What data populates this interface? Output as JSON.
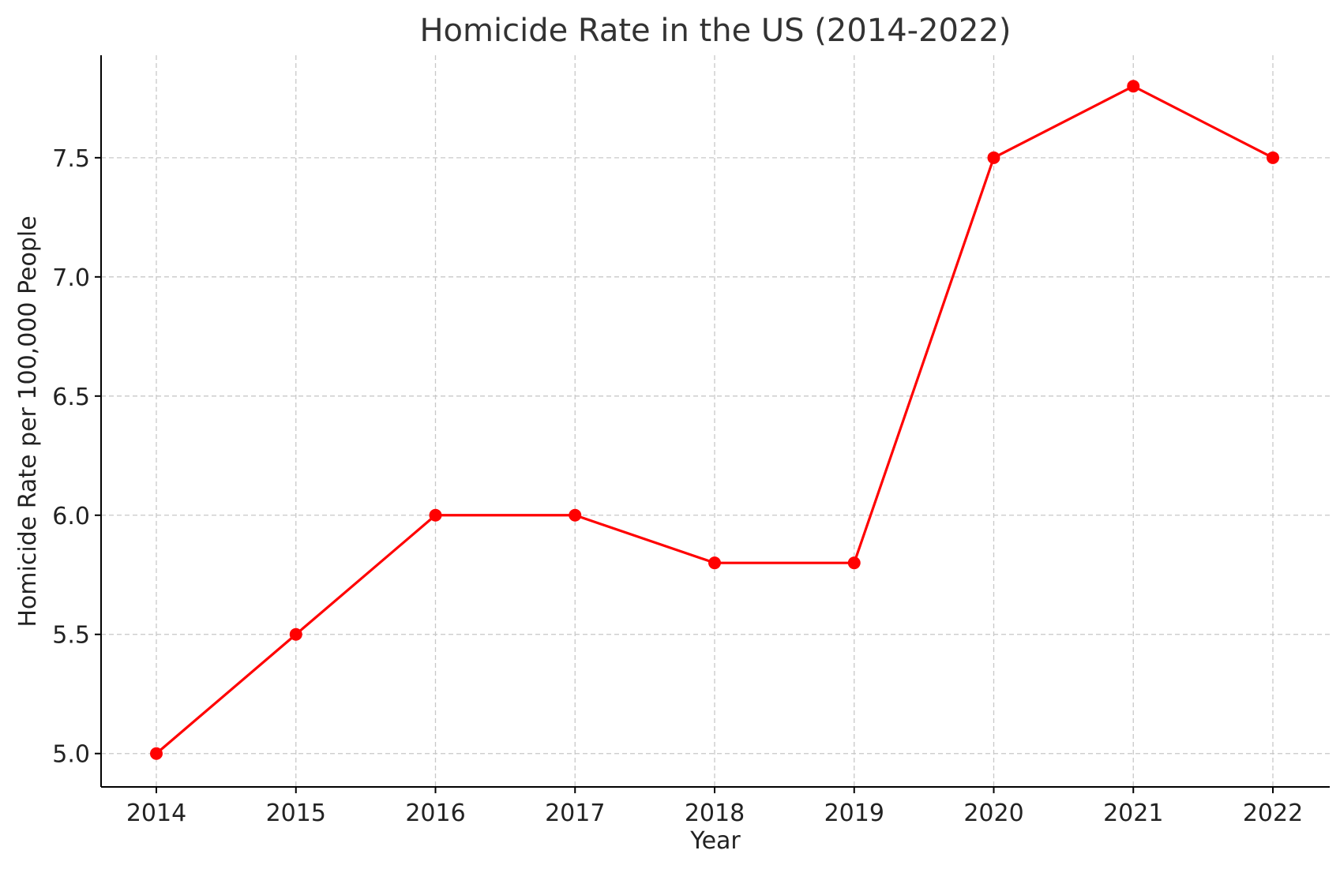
{
  "chart_data": {
    "type": "line",
    "title": "Homicide Rate in the US (2014-2022)",
    "xlabel": "Year",
    "ylabel": "Homicide Rate per 100,000 People",
    "categories": [
      "2014",
      "2015",
      "2016",
      "2017",
      "2018",
      "2019",
      "2020",
      "2021",
      "2022"
    ],
    "values": [
      5.0,
      5.5,
      6.0,
      6.0,
      5.8,
      5.8,
      7.5,
      7.8,
      7.5
    ],
    "yticks": [
      "5.0",
      "5.5",
      "6.0",
      "6.5",
      "7.0",
      "7.5"
    ],
    "ylim": [
      4.86,
      7.93
    ],
    "grid": true,
    "line_color": "#ff0000",
    "marker": "circle"
  }
}
